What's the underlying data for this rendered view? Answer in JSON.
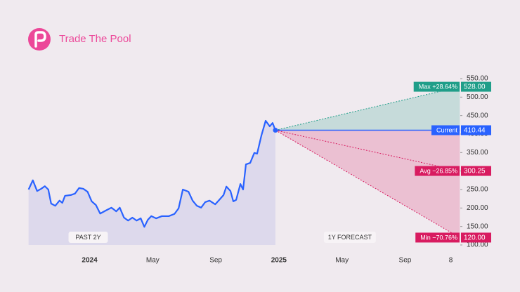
{
  "brand": "Trade The Pool",
  "chart_data": {
    "type": "line",
    "xlim": [
      -3.9,
      23.5
    ],
    "xticks": [
      {
        "value": 0,
        "label": "2024"
      },
      {
        "value": 4,
        "label": "May"
      },
      {
        "value": 8,
        "label": "Sep"
      },
      {
        "value": 12,
        "label": "2025"
      },
      {
        "value": 16,
        "label": "May"
      },
      {
        "value": 20,
        "label": "Sep"
      },
      {
        "value": 22.9,
        "label": "8"
      }
    ],
    "ylim": [
      100,
      550
    ],
    "yticks": [
      {
        "value": 100,
        "label": "100.00"
      },
      {
        "value": 150,
        "label": "150.00"
      },
      {
        "value": 200,
        "label": "200.00"
      },
      {
        "value": 250,
        "label": "250.00"
      },
      {
        "value": 300,
        "label": "300.00"
      },
      {
        "value": 350,
        "label": "350.00"
      },
      {
        "value": 400,
        "label": "400.00"
      },
      {
        "value": 450,
        "label": "450.00"
      },
      {
        "value": 500,
        "label": "500.00"
      },
      {
        "value": 550,
        "label": "550.00"
      }
    ],
    "series": [
      {
        "color": "#2962ff",
        "x": [
          -3.87,
          -3.6,
          -3.33,
          -3.07,
          -2.84,
          -2.62,
          -2.44,
          -2.18,
          -1.91,
          -1.73,
          -1.56,
          -1.2,
          -0.93,
          -0.67,
          -0.4,
          -0.13,
          0.13,
          0.4,
          0.67,
          1.02,
          1.38,
          1.69,
          1.91,
          2.18,
          2.44,
          2.71,
          2.98,
          3.24,
          3.47,
          3.69,
          3.91,
          4.22,
          4.58,
          5.02,
          5.38,
          5.64,
          5.91,
          6.27,
          6.53,
          6.8,
          7.07,
          7.33,
          7.6,
          7.96,
          8.22,
          8.49,
          8.67,
          8.93,
          9.11,
          9.29,
          9.56,
          9.73,
          9.91,
          10.18,
          10.44,
          10.62,
          10.89,
          11.16,
          11.42,
          11.6,
          11.78
        ],
        "values": [
          250,
          275,
          246,
          252,
          259,
          250,
          212,
          206,
          220,
          214,
          233,
          235,
          239,
          254,
          252,
          244,
          218,
          208,
          185,
          193,
          201,
          191,
          201,
          174,
          166,
          174,
          166,
          172,
          149,
          168,
          178,
          172,
          178,
          178,
          184,
          199,
          250,
          244,
          220,
          206,
          201,
          216,
          220,
          210,
          222,
          235,
          258,
          246,
          218,
          222,
          265,
          250,
          318,
          322,
          349,
          347,
          396,
          436,
          421,
          430,
          410.44
        ]
      }
    ],
    "forecast": {
      "x_end": 23.47,
      "levels": [
        {
          "name": "Max +28.64%",
          "value": 528,
          "value_label": "528.00",
          "color": "#1f9e89"
        },
        {
          "name": "Current",
          "value": 410.44,
          "value_label": "410.44",
          "color": "#2962ff"
        },
        {
          "name": "Avg −26.85%",
          "value": 300.25,
          "value_label": "300.25",
          "color": "#d81b60"
        },
        {
          "name": "Min −70.76%",
          "value": 120,
          "value_label": "120.00",
          "color": "#d81b60"
        }
      ]
    },
    "annotations": [
      "PAST 2Y",
      "1Y FORECAST"
    ]
  }
}
